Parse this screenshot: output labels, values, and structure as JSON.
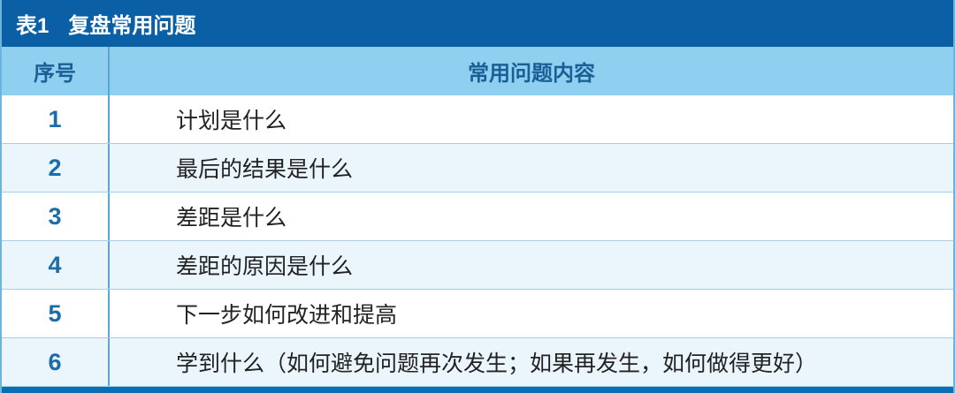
{
  "title": {
    "label": "表1",
    "text": "复盘常用问题"
  },
  "columns": [
    "序号",
    "常用问题内容"
  ],
  "rows": [
    {
      "no": "1",
      "content": "计划是什么"
    },
    {
      "no": "2",
      "content": "最后的结果是什么"
    },
    {
      "no": "3",
      "content": "差距是什么"
    },
    {
      "no": "4",
      "content": "差距的原因是什么"
    },
    {
      "no": "5",
      "content": "下一步如何改进和提高"
    },
    {
      "no": "6",
      "content": "学到什么（如何避免问题再次发生；如果再发生，如何做得更好）"
    }
  ],
  "colors": {
    "title_bg": "#0b5fa5",
    "header_bg": "#8fd0f1",
    "alt_row_bg": "#eaf5fc",
    "number_text": "#1c6ca8"
  }
}
